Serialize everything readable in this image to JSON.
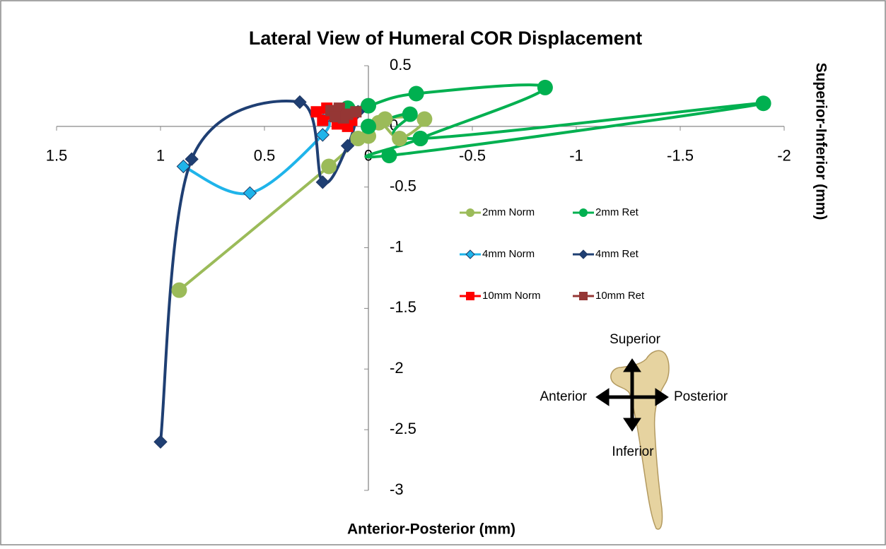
{
  "chart_data": {
    "type": "scatter",
    "title": "Lateral View of Humeral COR Displacement",
    "x_label": "Anterior-Posterior (mm)",
    "y_label": "Superior-Inferior (mm)",
    "xlim": [
      1.5,
      -2
    ],
    "ylim": [
      -3,
      0.5
    ],
    "xticks": [
      1.5,
      1,
      0.5,
      0,
      -0.5,
      -1,
      -1.5,
      -2
    ],
    "yticks": [
      0.5,
      0,
      -0.5,
      -1,
      -1.5,
      -2,
      -2.5,
      -3
    ],
    "grid": false,
    "smooth": true,
    "annotations": [
      "Superior",
      "Anterior",
      "Posterior",
      "Inferior"
    ],
    "series": [
      {
        "name": "2mm Norm",
        "color": "#9bbb59",
        "marker": "circle",
        "x": [
          0.91,
          0.19,
          0.05,
          -0.05,
          -0.15,
          -0.27,
          -0.08,
          0.0
        ],
        "values": [
          -1.35,
          -0.33,
          -0.1,
          0.03,
          -0.1,
          0.06,
          0.06,
          -0.08
        ]
      },
      {
        "name": "2mm Ret",
        "color": "#00b050",
        "marker": "circle",
        "x": [
          0.1,
          0.0,
          -0.23,
          -0.85,
          -0.25,
          -0.1,
          -1.9,
          -0.25,
          -0.2,
          0.0
        ],
        "values": [
          0.15,
          0.17,
          0.27,
          0.32,
          -0.1,
          -0.24,
          0.19,
          -0.1,
          0.1,
          0.0
        ]
      },
      {
        "name": "4mm Norm",
        "color": "#1fb4ea",
        "marker": "diamond",
        "x": [
          0.89,
          0.57,
          0.22,
          0.2
        ],
        "values": [
          -0.33,
          -0.55,
          -0.07,
          0.08
        ]
      },
      {
        "name": "4mm Ret",
        "color": "#1f3f73",
        "marker": "diamond",
        "x": [
          1.0,
          0.85,
          0.33,
          0.22,
          0.1,
          0.05
        ],
        "values": [
          -2.6,
          -0.27,
          0.2,
          -0.46,
          -0.16,
          0.12
        ]
      },
      {
        "name": "10mm Norm",
        "color": "#ff0000",
        "marker": "square",
        "x": [
          0.25,
          0.22,
          0.18,
          0.15,
          0.12,
          0.1,
          0.2,
          0.08
        ],
        "values": [
          0.12,
          0.05,
          0.1,
          0.02,
          0.08,
          0.0,
          0.15,
          0.05
        ]
      },
      {
        "name": "10mm Ret",
        "color": "#953735",
        "marker": "square",
        "x": [
          0.18,
          0.14,
          0.1,
          0.06,
          0.12,
          0.16
        ],
        "values": [
          0.13,
          0.15,
          0.1,
          0.12,
          0.07,
          0.08
        ]
      }
    ]
  }
}
